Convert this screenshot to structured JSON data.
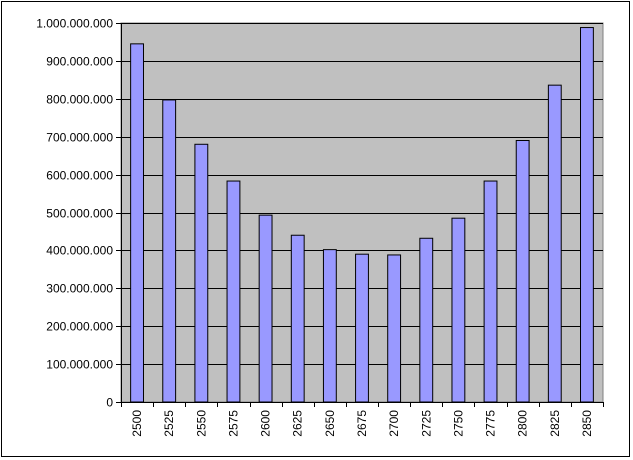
{
  "chart_data": {
    "type": "bar",
    "title": "",
    "xlabel": "",
    "ylabel": "",
    "categories": [
      "2500",
      "2525",
      "2550",
      "2575",
      "2600",
      "2625",
      "2650",
      "2675",
      "2700",
      "2725",
      "2750",
      "2775",
      "2800",
      "2825",
      "2850"
    ],
    "values": [
      945000000,
      797000000,
      680000000,
      583000000,
      493000000,
      440000000,
      402000000,
      390000000,
      388000000,
      432000000,
      485000000,
      583000000,
      690000000,
      836000000,
      988000000
    ],
    "ylim": [
      0,
      1000000000
    ],
    "yticks": [
      "0",
      "100.000.000",
      "200.000.000",
      "300.000.000",
      "400.000.000",
      "500.000.000",
      "600.000.000",
      "700.000.000",
      "800.000.000",
      "900.000.000",
      "1.000.000.000"
    ],
    "grid": true,
    "legend": "none",
    "colors": {
      "plot_background": "#c0c0c0",
      "bar_fill": "#9999ff",
      "bar_stroke": "#000000",
      "gridline": "#000000"
    }
  }
}
